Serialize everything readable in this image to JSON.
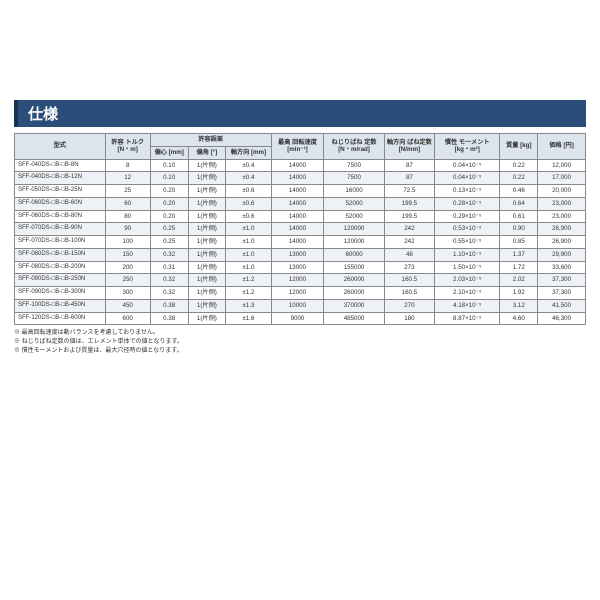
{
  "title": "仕様",
  "headers": {
    "model": "型式",
    "torque": "許容\nトルク\n[N・m]",
    "tol_group": "許容誤差",
    "ecc": "偏心\n[mm]",
    "ang": "偏角\n[°]",
    "axial": "軸方向\n[mm]",
    "rpm": "最高\n回転速度\n[min⁻¹]",
    "tors": "ねじりばね\n定数\n[N・m/rad]",
    "axsp": "軸方向\nばね定数\n[N/mm]",
    "moment": "慣性\nモーメント\n[kg・m²]",
    "mass": "質量\n[kg]",
    "price": "価格\n[円]"
  },
  "rows": [
    {
      "model": "SFF-040DS-□B-□B-8N",
      "tq": "8",
      "ecc": "0.10",
      "ang": "1(片側)",
      "ax": "±0.4",
      "rpm": "14000",
      "tors": "7500",
      "axsp": "87",
      "mom": "0.04×10⁻⁵",
      "mass": "0.22",
      "price": "12,000"
    },
    {
      "model": "SFF-040DS-□B-□B-12N",
      "tq": "12",
      "ecc": "0.10",
      "ang": "1(片側)",
      "ax": "±0.4",
      "rpm": "14000",
      "tors": "7500",
      "axsp": "87",
      "mom": "0.04×10⁻⁵",
      "mass": "0.22",
      "price": "17,000"
    },
    {
      "model": "SFF-050DS-□B-□B-25N",
      "tq": "25",
      "ecc": "0.20",
      "ang": "1(片側)",
      "ax": "±0.6",
      "rpm": "14000",
      "tors": "16000",
      "axsp": "72.5",
      "mom": "0.13×10⁻⁵",
      "mass": "0.46",
      "price": "20,000"
    },
    {
      "model": "SFF-060DS-□B-□B-60N",
      "tq": "60",
      "ecc": "0.20",
      "ang": "1(片側)",
      "ax": "±0.6",
      "rpm": "14000",
      "tors": "52000",
      "axsp": "199.5",
      "mom": "0.28×10⁻⁵",
      "mass": "0.64",
      "price": "23,000"
    },
    {
      "model": "SFF-060DS-□B-□B-80N",
      "tq": "80",
      "ecc": "0.20",
      "ang": "1(片側)",
      "ax": "±0.6",
      "rpm": "14000",
      "tors": "52000",
      "axsp": "199.5",
      "mom": "0.29×10⁻⁵",
      "mass": "0.61",
      "price": "23,000"
    },
    {
      "model": "SFF-070DS-□B-□B-90N",
      "tq": "90",
      "ecc": "0.25",
      "ang": "1(片側)",
      "ax": "±1.0",
      "rpm": "14000",
      "tors": "120000",
      "axsp": "242",
      "mom": "0.53×10⁻⁵",
      "mass": "0.90",
      "price": "26,900"
    },
    {
      "model": "SFF-070DS-□B-□B-100N",
      "tq": "100",
      "ecc": "0.25",
      "ang": "1(片側)",
      "ax": "±1.0",
      "rpm": "14000",
      "tors": "120000",
      "axsp": "242",
      "mom": "0.55×10⁻⁵",
      "mass": "0.85",
      "price": "26,900"
    },
    {
      "model": "SFF-080DS-□B-□B-150N",
      "tq": "150",
      "ecc": "0.32",
      "ang": "1(片側)",
      "ax": "±1.0",
      "rpm": "13000",
      "tors": "60000",
      "axsp": "48",
      "mom": "1.10×10⁻⁵",
      "mass": "1.37",
      "price": "29,900"
    },
    {
      "model": "SFF-080DS-□B-□B-200N",
      "tq": "200",
      "ecc": "0.31",
      "ang": "1(片側)",
      "ax": "±1.0",
      "rpm": "13000",
      "tors": "155000",
      "axsp": "273",
      "mom": "1.50×10⁻⁵",
      "mass": "1.72",
      "price": "33,600"
    },
    {
      "model": "SFF-090DS-□B-□B-250N",
      "tq": "250",
      "ecc": "0.32",
      "ang": "1(片側)",
      "ax": "±1.2",
      "rpm": "12000",
      "tors": "260000",
      "axsp": "160.5",
      "mom": "2.03×10⁻⁵",
      "mass": "2.02",
      "price": "37,300"
    },
    {
      "model": "SFF-090DS-□B-□B-300N",
      "tq": "300",
      "ecc": "0.32",
      "ang": "1(片側)",
      "ax": "±1.2",
      "rpm": "12000",
      "tors": "260000",
      "axsp": "160.5",
      "mom": "2.10×10⁻⁵",
      "mass": "1.92",
      "price": "37,300"
    },
    {
      "model": "SFF-100DS-□B-□B-450N",
      "tq": "450",
      "ecc": "0.38",
      "ang": "1(片側)",
      "ax": "±1.3",
      "rpm": "10000",
      "tors": "370000",
      "axsp": "270",
      "mom": "4.18×10⁻⁵",
      "mass": "3.12",
      "price": "41,500"
    },
    {
      "model": "SFF-120DS-□B-□B-600N",
      "tq": "600",
      "ecc": "0.38",
      "ang": "1(片側)",
      "ax": "±1.6",
      "rpm": "9000",
      "tors": "485000",
      "axsp": "180",
      "mom": "8.87×10⁻⁵",
      "mass": "4.60",
      "price": "46,300"
    }
  ],
  "notes": [
    "※ 最高回転速度は動バランスを考慮しておりません。",
    "※ ねじりばね定数の値は、エレメント単体での値となります。",
    "※ 慣性モーメントおよび質量は、最大穴径時の値となります。"
  ]
}
